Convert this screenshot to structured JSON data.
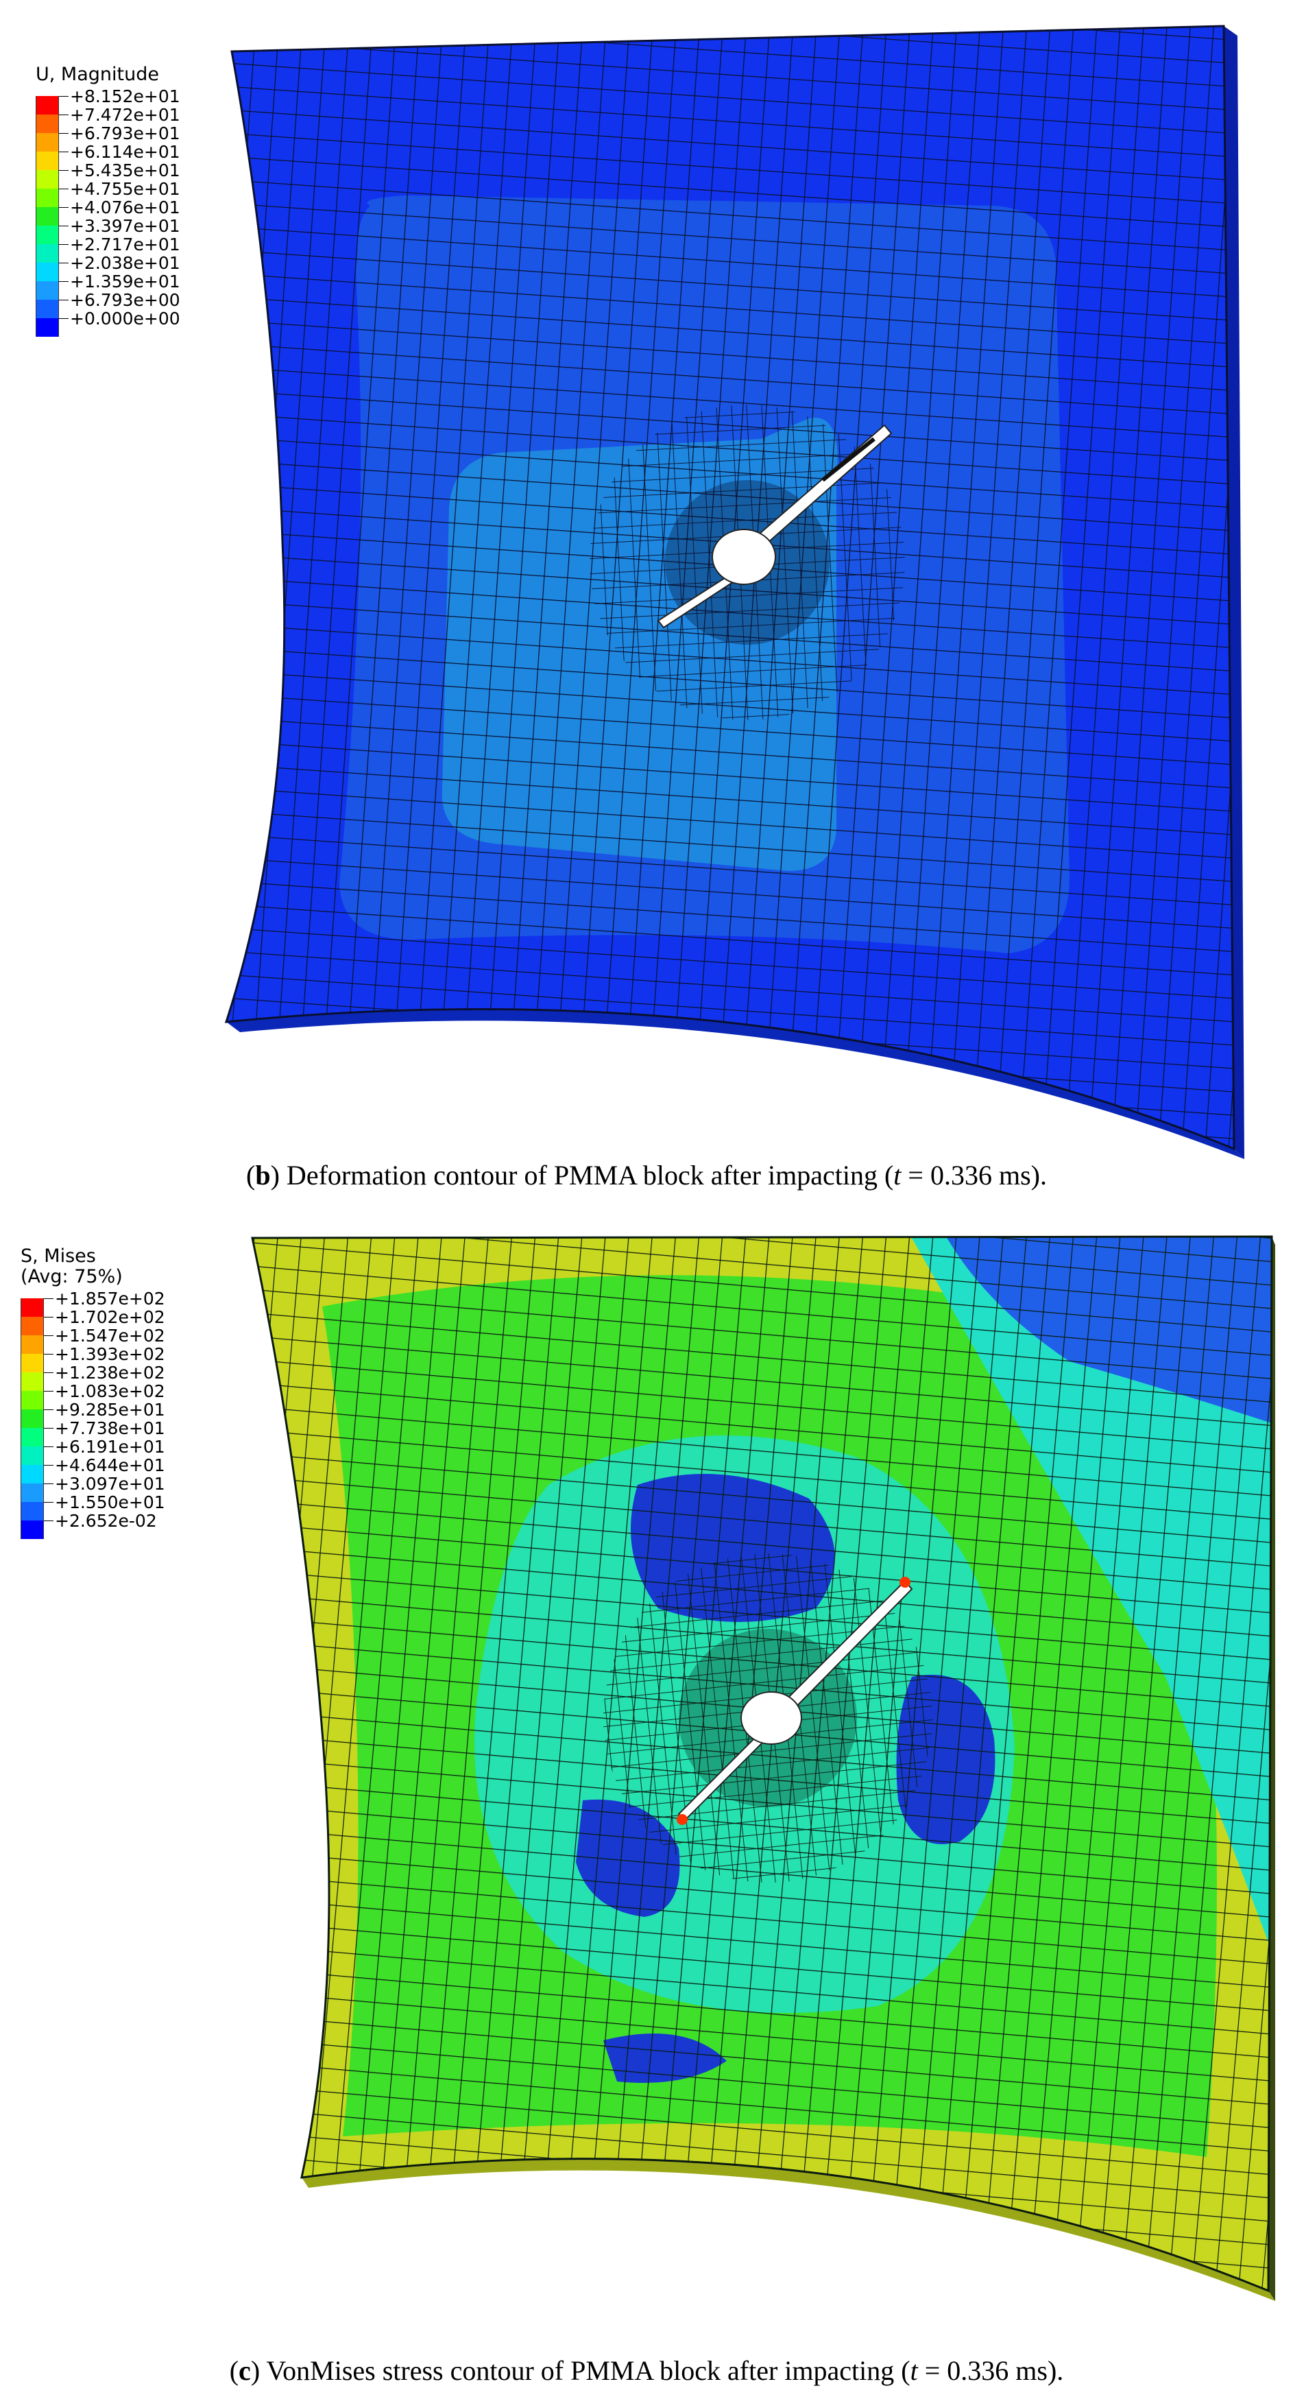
{
  "panel_b": {
    "legend": {
      "title": "U, Magnitude",
      "values": [
        "+8.152e+01",
        "+7.472e+01",
        "+6.793e+01",
        "+6.114e+01",
        "+5.435e+01",
        "+4.755e+01",
        "+4.076e+01",
        "+3.397e+01",
        "+2.717e+01",
        "+2.038e+01",
        "+1.359e+01",
        "+6.793e+00",
        "+0.000e+00"
      ],
      "colors": [
        "#ff0000",
        "#ff6200",
        "#ffa300",
        "#ffd700",
        "#bfff00",
        "#77ff00",
        "#22ee22",
        "#00ff7f",
        "#00f0c0",
        "#00d9ff",
        "#1a9cff",
        "#1160ff",
        "#0000ff"
      ]
    },
    "caption": {
      "open": "(",
      "letter": "b",
      "text": ") Deformation contour of PMMA block after impacting (",
      "t_symbol": "t",
      "t_value": " = 0.336 ms)."
    },
    "contour_colors": {
      "outer": "#1133ee",
      "mid": "#1a55e6",
      "inner": "#1e88e0",
      "mesh": "#0a1030"
    }
  },
  "panel_c": {
    "legend": {
      "title": "S, Mises",
      "subtitle": "(Avg: 75%)",
      "values": [
        "+1.857e+02",
        "+1.702e+02",
        "+1.547e+02",
        "+1.393e+02",
        "+1.238e+02",
        "+1.083e+02",
        "+9.285e+01",
        "+7.738e+01",
        "+6.191e+01",
        "+4.644e+01",
        "+3.097e+01",
        "+1.550e+01",
        "+2.652e-02"
      ],
      "colors": [
        "#ff0000",
        "#ff6200",
        "#ffa300",
        "#ffd700",
        "#bfff00",
        "#77ff00",
        "#22ee22",
        "#00ff7f",
        "#00f0c0",
        "#00d9ff",
        "#1a9cff",
        "#1160ff",
        "#0000ff"
      ]
    },
    "caption": {
      "open": "(",
      "letter": "c",
      "text": ") VonMises stress contour of PMMA block after impacting (",
      "t_symbol": "t",
      "t_value": " = 0.336 ms)."
    },
    "contour_colors": {
      "edge": "#c8d820",
      "green": "#3ee02a",
      "cyan": "#22e0c8",
      "blue": "#2060e8",
      "deep": "#1838d0",
      "mesh": "#0a1a10"
    }
  }
}
